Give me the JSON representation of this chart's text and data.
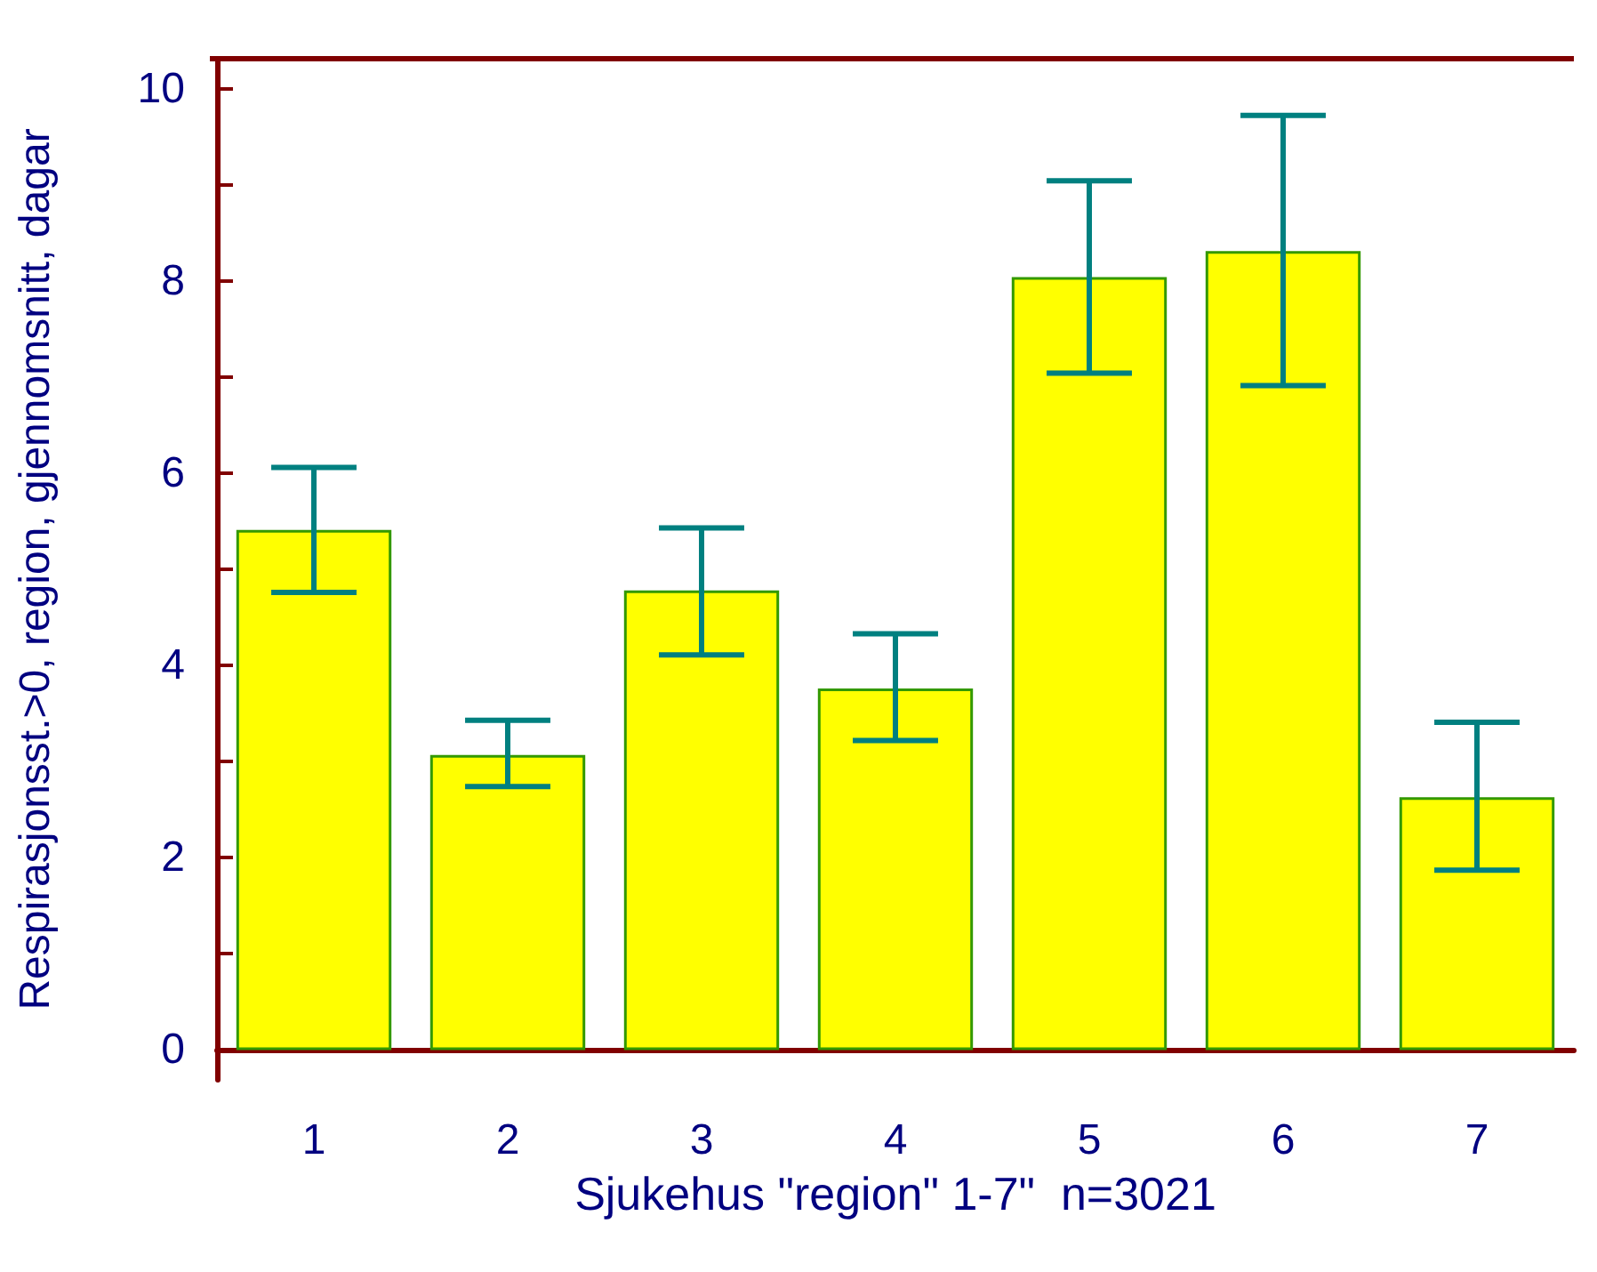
{
  "chart_data": {
    "type": "bar",
    "xlabel": "Sjukehus \"region\" 1-7\"  n=3021",
    "ylabel": "Respirasjonsst.>0, region, gjennomsnitt, dagar",
    "categories": [
      "1",
      "2",
      "3",
      "4",
      "5",
      "6",
      "7"
    ],
    "values": [
      5.41,
      3.07,
      4.78,
      3.76,
      8.04,
      8.31,
      2.63
    ],
    "errors": [
      [
        4.76,
        6.06
      ],
      [
        2.74,
        3.43
      ],
      [
        4.11,
        5.43
      ],
      [
        3.22,
        4.33
      ],
      [
        7.04,
        9.04
      ],
      [
        6.91,
        9.72
      ],
      [
        1.87,
        3.41
      ]
    ],
    "color": "#ffff00",
    "ylim": [
      -0.31,
      10.31
    ],
    "yticks": [
      0,
      {
        "value": 1,
        "label": null
      },
      2,
      {
        "value": 3,
        "label": null
      },
      4,
      {
        "value": 5,
        "label": null
      },
      6,
      {
        "value": 7,
        "label": null
      },
      8,
      {
        "value": 9,
        "label": null
      },
      10
    ]
  }
}
